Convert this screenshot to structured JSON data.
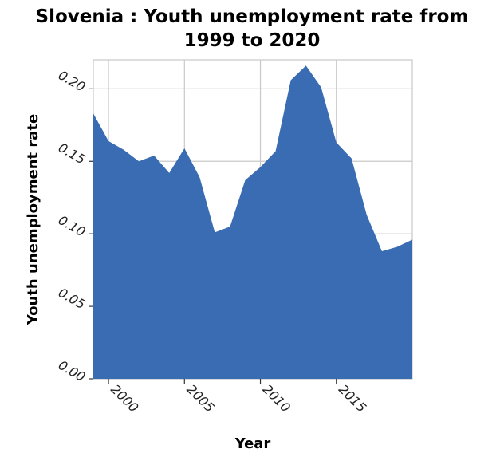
{
  "chart_data": {
    "type": "area",
    "title_line1": "Slovenia : Youth unemployment rate from",
    "title_line2": "1999 to 2020",
    "xlabel": "Year",
    "ylabel": "Youth unemployment rate",
    "xlim": [
      1999,
      2020
    ],
    "ylim": [
      0,
      0.22
    ],
    "xticks": [
      2000,
      2005,
      2010,
      2015
    ],
    "xtick_labels": [
      "2000",
      "2005",
      "2010",
      "2015"
    ],
    "yticks": [
      0,
      0.05,
      0.1,
      0.15,
      0.2
    ],
    "ytick_labels": [
      "0.00",
      "0.05",
      "0.10",
      "0.15",
      "0.20"
    ],
    "grid": true,
    "color": "#3a6cb4",
    "x": [
      1999,
      2000,
      2001,
      2002,
      2003,
      2004,
      2005,
      2006,
      2007,
      2008,
      2009,
      2010,
      2011,
      2012,
      2013,
      2014,
      2015,
      2016,
      2017,
      2018,
      2019,
      2020
    ],
    "values": [
      0.183,
      0.164,
      0.158,
      0.15,
      0.154,
      0.142,
      0.159,
      0.139,
      0.101,
      0.105,
      0.137,
      0.146,
      0.157,
      0.206,
      0.216,
      0.201,
      0.163,
      0.152,
      0.113,
      0.088,
      0.091,
      0.096
    ]
  }
}
